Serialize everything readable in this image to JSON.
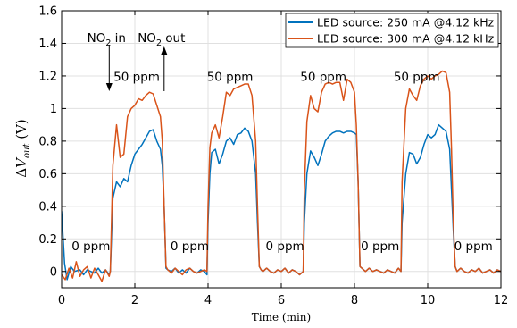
{
  "chart_data": {
    "type": "line",
    "xlabel": "Time (min)",
    "ylabel": "ΔV_out (V)",
    "ylabel_parts": {
      "delta": "Δ",
      "v": "V",
      "sub": "out",
      "unit": " (V)"
    },
    "xlim": [
      0,
      12
    ],
    "ylim": [
      -0.1,
      1.6
    ],
    "x_ticks": [
      0,
      2,
      4,
      6,
      8,
      10,
      12
    ],
    "y_ticks": [
      0,
      0.2,
      0.4,
      0.6,
      0.8,
      1,
      1.2,
      1.4,
      1.6
    ],
    "grid": true,
    "legend_position": "top-right",
    "series": [
      {
        "name": "LED source: 250 mA @4.12 kHz",
        "color": "#0072BD",
        "x": [
          0.0,
          0.08,
          0.15,
          0.25,
          0.35,
          0.5,
          0.6,
          0.7,
          0.8,
          0.9,
          1.0,
          1.1,
          1.2,
          1.3,
          1.33,
          1.4,
          1.5,
          1.6,
          1.7,
          1.8,
          1.9,
          2.0,
          2.1,
          2.2,
          2.3,
          2.4,
          2.5,
          2.6,
          2.7,
          2.75,
          2.8,
          2.85,
          2.9,
          3.0,
          3.1,
          3.2,
          3.3,
          3.4,
          3.5,
          3.6,
          3.7,
          3.8,
          3.9,
          3.97,
          4.0,
          4.05,
          4.1,
          4.2,
          4.3,
          4.4,
          4.5,
          4.6,
          4.7,
          4.8,
          4.9,
          5.0,
          5.1,
          5.2,
          5.3,
          5.35,
          5.4,
          5.45,
          5.5,
          5.6,
          5.7,
          5.8,
          5.9,
          6.0,
          6.1,
          6.2,
          6.3,
          6.4,
          6.5,
          6.6,
          6.63,
          6.7,
          6.8,
          6.9,
          7.0,
          7.1,
          7.2,
          7.3,
          7.4,
          7.5,
          7.6,
          7.7,
          7.8,
          7.9,
          8.0,
          8.05,
          8.1,
          8.15,
          8.2,
          8.3,
          8.4,
          8.5,
          8.6,
          8.7,
          8.8,
          8.9,
          9.0,
          9.1,
          9.2,
          9.27,
          9.3,
          9.4,
          9.5,
          9.6,
          9.7,
          9.8,
          9.9,
          10.0,
          10.1,
          10.2,
          10.3,
          10.4,
          10.5,
          10.6,
          10.65,
          10.7,
          10.75,
          10.8,
          10.9,
          11.0,
          11.1,
          11.2,
          11.3,
          11.4,
          11.5,
          11.6,
          11.7,
          11.8,
          11.9,
          12.0
        ],
        "y": [
          0.37,
          0.05,
          -0.05,
          0.03,
          0.0,
          0.01,
          -0.02,
          0.01,
          0.0,
          -0.01,
          0.02,
          -0.01,
          0.01,
          -0.02,
          0.0,
          0.45,
          0.55,
          0.52,
          0.57,
          0.55,
          0.65,
          0.72,
          0.75,
          0.78,
          0.82,
          0.86,
          0.87,
          0.8,
          0.75,
          0.65,
          0.4,
          0.02,
          0.01,
          0.0,
          0.02,
          -0.01,
          0.01,
          -0.01,
          0.02,
          0.0,
          -0.01,
          0.01,
          0.0,
          -0.02,
          0.3,
          0.6,
          0.73,
          0.75,
          0.66,
          0.72,
          0.8,
          0.82,
          0.78,
          0.84,
          0.85,
          0.88,
          0.86,
          0.8,
          0.6,
          0.3,
          0.03,
          0.01,
          0.0,
          0.02,
          0.0,
          -0.01,
          0.01,
          0.0,
          0.02,
          -0.01,
          0.01,
          0.0,
          -0.02,
          0.0,
          0.3,
          0.6,
          0.74,
          0.7,
          0.65,
          0.72,
          0.8,
          0.83,
          0.85,
          0.86,
          0.86,
          0.85,
          0.86,
          0.86,
          0.85,
          0.84,
          0.55,
          0.03,
          0.02,
          0.0,
          0.02,
          0.0,
          0.01,
          0.0,
          -0.01,
          0.01,
          0.0,
          -0.01,
          0.02,
          0.0,
          0.3,
          0.6,
          0.73,
          0.72,
          0.66,
          0.7,
          0.78,
          0.84,
          0.82,
          0.84,
          0.9,
          0.88,
          0.86,
          0.75,
          0.5,
          0.25,
          0.03,
          0.0,
          0.02,
          0.0,
          -0.01,
          0.01,
          0.0,
          0.02,
          -0.01,
          0.0,
          0.01,
          -0.01,
          0.01,
          0.0
        ]
      },
      {
        "name": "LED source: 300 mA @4.12 kHz",
        "color": "#D95319",
        "x": [
          0.0,
          0.1,
          0.2,
          0.3,
          0.4,
          0.5,
          0.6,
          0.7,
          0.8,
          0.9,
          1.0,
          1.1,
          1.2,
          1.3,
          1.33,
          1.4,
          1.5,
          1.6,
          1.7,
          1.8,
          1.9,
          2.0,
          2.1,
          2.2,
          2.3,
          2.4,
          2.5,
          2.6,
          2.7,
          2.75,
          2.8,
          2.85,
          2.9,
          3.0,
          3.1,
          3.2,
          3.3,
          3.4,
          3.5,
          3.6,
          3.7,
          3.8,
          3.9,
          3.97,
          4.0,
          4.05,
          4.1,
          4.2,
          4.3,
          4.4,
          4.5,
          4.6,
          4.7,
          4.8,
          4.9,
          5.0,
          5.1,
          5.2,
          5.3,
          5.35,
          5.4,
          5.45,
          5.5,
          5.6,
          5.7,
          5.8,
          5.9,
          6.0,
          6.1,
          6.2,
          6.3,
          6.4,
          6.5,
          6.6,
          6.63,
          6.7,
          6.8,
          6.9,
          7.0,
          7.1,
          7.2,
          7.3,
          7.4,
          7.5,
          7.6,
          7.7,
          7.8,
          7.9,
          8.0,
          8.05,
          8.1,
          8.15,
          8.2,
          8.3,
          8.4,
          8.5,
          8.6,
          8.7,
          8.8,
          8.9,
          9.0,
          9.1,
          9.2,
          9.27,
          9.3,
          9.4,
          9.5,
          9.6,
          9.7,
          9.8,
          9.9,
          10.0,
          10.1,
          10.2,
          10.3,
          10.4,
          10.5,
          10.6,
          10.65,
          10.7,
          10.75,
          10.8,
          10.9,
          11.0,
          11.1,
          11.2,
          11.3,
          11.4,
          11.5,
          11.6,
          11.7,
          11.8,
          11.9,
          12.0
        ],
        "y": [
          -0.02,
          -0.05,
          0.02,
          -0.04,
          0.06,
          -0.03,
          0.01,
          0.03,
          -0.04,
          0.02,
          -0.02,
          -0.06,
          0.01,
          -0.03,
          0.0,
          0.65,
          0.9,
          0.7,
          0.72,
          0.95,
          1.0,
          1.02,
          1.06,
          1.05,
          1.08,
          1.1,
          1.09,
          1.02,
          0.95,
          0.8,
          0.4,
          0.03,
          0.01,
          -0.01,
          0.02,
          0.0,
          -0.02,
          0.01,
          0.02,
          0.0,
          -0.01,
          0.0,
          0.01,
          0.0,
          0.4,
          0.76,
          0.85,
          0.9,
          0.82,
          0.95,
          1.1,
          1.08,
          1.12,
          1.13,
          1.14,
          1.15,
          1.15,
          1.08,
          0.8,
          0.4,
          0.03,
          0.01,
          0.0,
          0.02,
          0.0,
          -0.01,
          0.01,
          0.0,
          0.02,
          -0.01,
          0.01,
          0.0,
          -0.02,
          0.0,
          0.5,
          0.92,
          1.08,
          1.0,
          0.98,
          1.1,
          1.15,
          1.16,
          1.15,
          1.16,
          1.16,
          1.05,
          1.18,
          1.16,
          1.1,
          0.9,
          0.55,
          0.03,
          0.02,
          0.0,
          0.02,
          0.0,
          0.01,
          0.0,
          -0.01,
          0.01,
          0.0,
          -0.01,
          0.02,
          0.0,
          0.55,
          1.0,
          1.12,
          1.08,
          1.05,
          1.14,
          1.18,
          1.2,
          1.18,
          1.2,
          1.21,
          1.23,
          1.22,
          1.1,
          0.75,
          0.3,
          0.03,
          0.0,
          0.02,
          0.0,
          -0.01,
          0.01,
          0.0,
          0.02,
          -0.01,
          0.0,
          0.01,
          -0.01,
          0.01,
          0.0
        ]
      }
    ],
    "annotations": {
      "no2_in": {
        "label": "NO",
        "sub": "2",
        "suffix": " in",
        "x": 1.3
      },
      "no2_out": {
        "label": "NO",
        "sub": "2",
        "suffix": " out",
        "x": 2.8
      },
      "ppm_high": [
        {
          "text": "50 ppm",
          "x": 2.05,
          "y": 1.195
        },
        {
          "text": "50 ppm",
          "x": 4.6,
          "y": 1.195
        },
        {
          "text": "50 ppm",
          "x": 7.15,
          "y": 1.195
        },
        {
          "text": "50 ppm",
          "x": 9.7,
          "y": 1.195
        }
      ],
      "ppm_low": [
        {
          "text": "0 ppm",
          "x": 0.8,
          "y": 0.155
        },
        {
          "text": "0 ppm",
          "x": 3.5,
          "y": 0.155
        },
        {
          "text": "0 ppm",
          "x": 6.1,
          "y": 0.155
        },
        {
          "text": "0 ppm",
          "x": 8.7,
          "y": 0.155
        },
        {
          "text": "0 ppm",
          "x": 11.25,
          "y": 0.155
        }
      ]
    }
  }
}
